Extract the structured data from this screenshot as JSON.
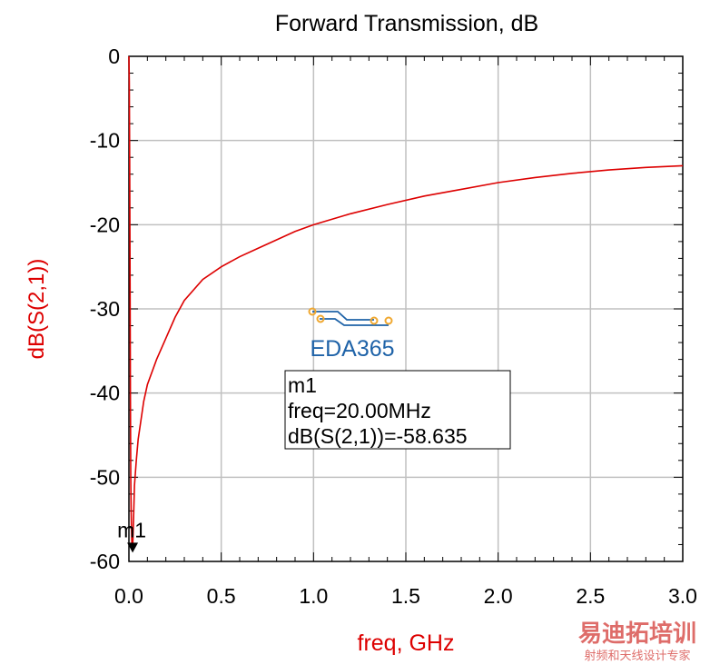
{
  "chart_data": {
    "type": "line",
    "title": "Forward Transmission, dB",
    "xlabel": "freq, GHz",
    "ylabel": "dB(S(2,1))",
    "xlim": [
      0,
      3.0
    ],
    "ylim": [
      -60,
      0
    ],
    "x_ticks": [
      "0.0",
      "0.5",
      "1.0",
      "1.5",
      "2.0",
      "2.5",
      "3.0"
    ],
    "y_ticks": [
      "0",
      "-10",
      "-20",
      "-30",
      "-40",
      "-50",
      "-60"
    ],
    "grid": true,
    "series": [
      {
        "color": "#dd0000",
        "x": [
          0.0,
          0.002,
          0.004,
          0.006,
          0.008,
          0.01,
          0.012,
          0.014,
          0.016,
          0.018,
          0.02,
          0.025,
          0.03,
          0.04,
          0.05,
          0.06,
          0.08,
          0.1,
          0.15,
          0.2,
          0.25,
          0.3,
          0.4,
          0.5,
          0.6,
          0.7,
          0.8,
          0.9,
          1.0,
          1.2,
          1.4,
          1.6,
          1.8,
          2.0,
          2.2,
          2.4,
          2.6,
          2.8,
          3.0
        ],
        "values": [
          0,
          -3,
          -12,
          -25,
          -40,
          -50,
          -54,
          -56,
          -58,
          -58.4,
          -58.635,
          -55,
          -51,
          -48,
          -45.5,
          -44,
          -41,
          -39,
          -36,
          -33.5,
          -31,
          -29,
          -26.5,
          -25,
          -23.8,
          -22.8,
          -21.8,
          -20.8,
          -20,
          -18.7,
          -17.6,
          -16.6,
          -15.8,
          -15,
          -14.4,
          -13.9,
          -13.5,
          -13.2,
          -13
        ]
      }
    ],
    "marker": {
      "name": "m1",
      "x": 0.02,
      "y": -58.635,
      "readout": [
        "m1",
        "freq=20.00MHz",
        "dB(S(2,1))=-58.635"
      ]
    }
  },
  "colors": {
    "trace": "#dd0000",
    "axis_label": "#dd0000",
    "grid": "#c0c0c0",
    "logo_blue": "#1f63a8",
    "logo_orange": "#f0a830",
    "watermark_red": "#d9534f"
  },
  "watermark": {
    "logo_text": "EDA365",
    "corner_title": "易迪拓培训",
    "corner_subtitle": "射频和天线设计专家"
  }
}
